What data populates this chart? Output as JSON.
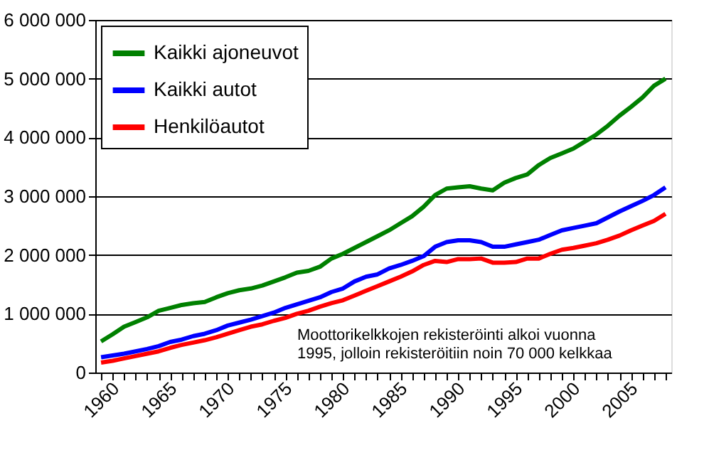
{
  "chart_data": {
    "type": "line",
    "x": [
      1960,
      1961,
      1962,
      1963,
      1964,
      1965,
      1966,
      1967,
      1968,
      1969,
      1970,
      1971,
      1972,
      1973,
      1974,
      1975,
      1976,
      1977,
      1978,
      1979,
      1980,
      1981,
      1982,
      1983,
      1984,
      1985,
      1986,
      1987,
      1988,
      1989,
      1990,
      1991,
      1992,
      1993,
      1994,
      1995,
      1996,
      1997,
      1998,
      1999,
      2000,
      2001,
      2002,
      2003,
      2004,
      2005,
      2006,
      2007,
      2008,
      2009
    ],
    "series": [
      {
        "name": "Kaikki ajoneuvot",
        "color": "#008000",
        "values": [
          530000,
          650000,
          780000,
          860000,
          940000,
          1050000,
          1100000,
          1150000,
          1180000,
          1200000,
          1280000,
          1350000,
          1400000,
          1430000,
          1480000,
          1550000,
          1620000,
          1700000,
          1730000,
          1800000,
          1940000,
          2020000,
          2120000,
          2220000,
          2320000,
          2420000,
          2540000,
          2660000,
          2820000,
          3020000,
          3130000,
          3150000,
          3170000,
          3130000,
          3100000,
          3230000,
          3310000,
          3370000,
          3530000,
          3650000,
          3730000,
          3810000,
          3930000,
          4050000,
          4200000,
          4370000,
          4520000,
          4680000,
          4880000,
          5000000
        ]
      },
      {
        "name": "Kaikki autot",
        "color": "#0000ff",
        "values": [
          260000,
          290000,
          320000,
          360000,
          400000,
          450000,
          520000,
          560000,
          620000,
          660000,
          720000,
          800000,
          850000,
          900000,
          960000,
          1020000,
          1100000,
          1160000,
          1220000,
          1280000,
          1370000,
          1430000,
          1550000,
          1630000,
          1670000,
          1770000,
          1830000,
          1900000,
          1980000,
          2140000,
          2220000,
          2250000,
          2250000,
          2220000,
          2140000,
          2140000,
          2180000,
          2220000,
          2260000,
          2340000,
          2420000,
          2460000,
          2500000,
          2540000,
          2640000,
          2740000,
          2830000,
          2920000,
          3020000,
          3150000
        ]
      },
      {
        "name": "Henkilöautot",
        "color": "#ff0000",
        "values": [
          170000,
          200000,
          240000,
          280000,
          320000,
          360000,
          420000,
          470000,
          510000,
          550000,
          600000,
          660000,
          720000,
          780000,
          820000,
          880000,
          930000,
          1000000,
          1050000,
          1120000,
          1180000,
          1230000,
          1310000,
          1390000,
          1470000,
          1550000,
          1630000,
          1720000,
          1830000,
          1900000,
          1880000,
          1930000,
          1930000,
          1940000,
          1870000,
          1870000,
          1880000,
          1940000,
          1940000,
          2020000,
          2090000,
          2120000,
          2160000,
          2200000,
          2260000,
          2330000,
          2420000,
          2500000,
          2580000,
          2700000
        ]
      }
    ],
    "ylim": [
      0,
      6000000
    ],
    "yticks": [
      0,
      {
        "value": 1000000,
        "label": "1 000 000"
      },
      {
        "value": 2000000,
        "label": "2 000 000"
      },
      {
        "value": 3000000,
        "label": "3 000 000"
      },
      {
        "value": 4000000,
        "label": "4 000 000"
      },
      {
        "value": 5000000,
        "label": "5 000 000"
      },
      {
        "value": 6000000,
        "label": "6 000 000"
      }
    ],
    "xlim": [
      1959.5,
      2009.5
    ],
    "xticks": [
      1960,
      {
        "value": 1961,
        "label": null
      },
      {
        "value": 1962,
        "label": null
      },
      {
        "value": 1963,
        "label": null
      },
      {
        "value": 1964,
        "label": null
      },
      1965,
      {
        "value": 1966,
        "label": null
      },
      {
        "value": 1967,
        "label": null
      },
      {
        "value": 1968,
        "label": null
      },
      {
        "value": 1969,
        "label": null
      },
      1970,
      {
        "value": 1971,
        "label": null
      },
      {
        "value": 1972,
        "label": null
      },
      {
        "value": 1973,
        "label": null
      },
      {
        "value": 1974,
        "label": null
      },
      1975,
      {
        "value": 1976,
        "label": null
      },
      {
        "value": 1977,
        "label": null
      },
      {
        "value": 1978,
        "label": null
      },
      {
        "value": 1979,
        "label": null
      },
      1980,
      {
        "value": 1981,
        "label": null
      },
      {
        "value": 1982,
        "label": null
      },
      {
        "value": 1983,
        "label": null
      },
      {
        "value": 1984,
        "label": null
      },
      1985,
      {
        "value": 1986,
        "label": null
      },
      {
        "value": 1987,
        "label": null
      },
      {
        "value": 1988,
        "label": null
      },
      {
        "value": 1989,
        "label": null
      },
      1990,
      {
        "value": 1991,
        "label": null
      },
      {
        "value": 1992,
        "label": null
      },
      {
        "value": 1993,
        "label": null
      },
      {
        "value": 1994,
        "label": null
      },
      1995,
      {
        "value": 1996,
        "label": null
      },
      {
        "value": 1997,
        "label": null
      },
      {
        "value": 1998,
        "label": null
      },
      {
        "value": 1999,
        "label": null
      },
      2000,
      {
        "value": 2001,
        "label": null
      },
      {
        "value": 2002,
        "label": null
      },
      {
        "value": 2003,
        "label": null
      },
      {
        "value": 2004,
        "label": null
      },
      2005,
      {
        "value": 2006,
        "label": null
      },
      {
        "value": 2007,
        "label": null
      },
      {
        "value": 2008,
        "label": null
      },
      {
        "value": 2009,
        "label": null
      }
    ],
    "grid": "y",
    "legend": "top left",
    "marker": "none",
    "line_style": "solid",
    "annotations": [
      "Moottorikelkkojen rekisteröinti alkoi vuonna 1995, jolloin rekisteröitiin noin 70 000 kelkkaa"
    ]
  }
}
